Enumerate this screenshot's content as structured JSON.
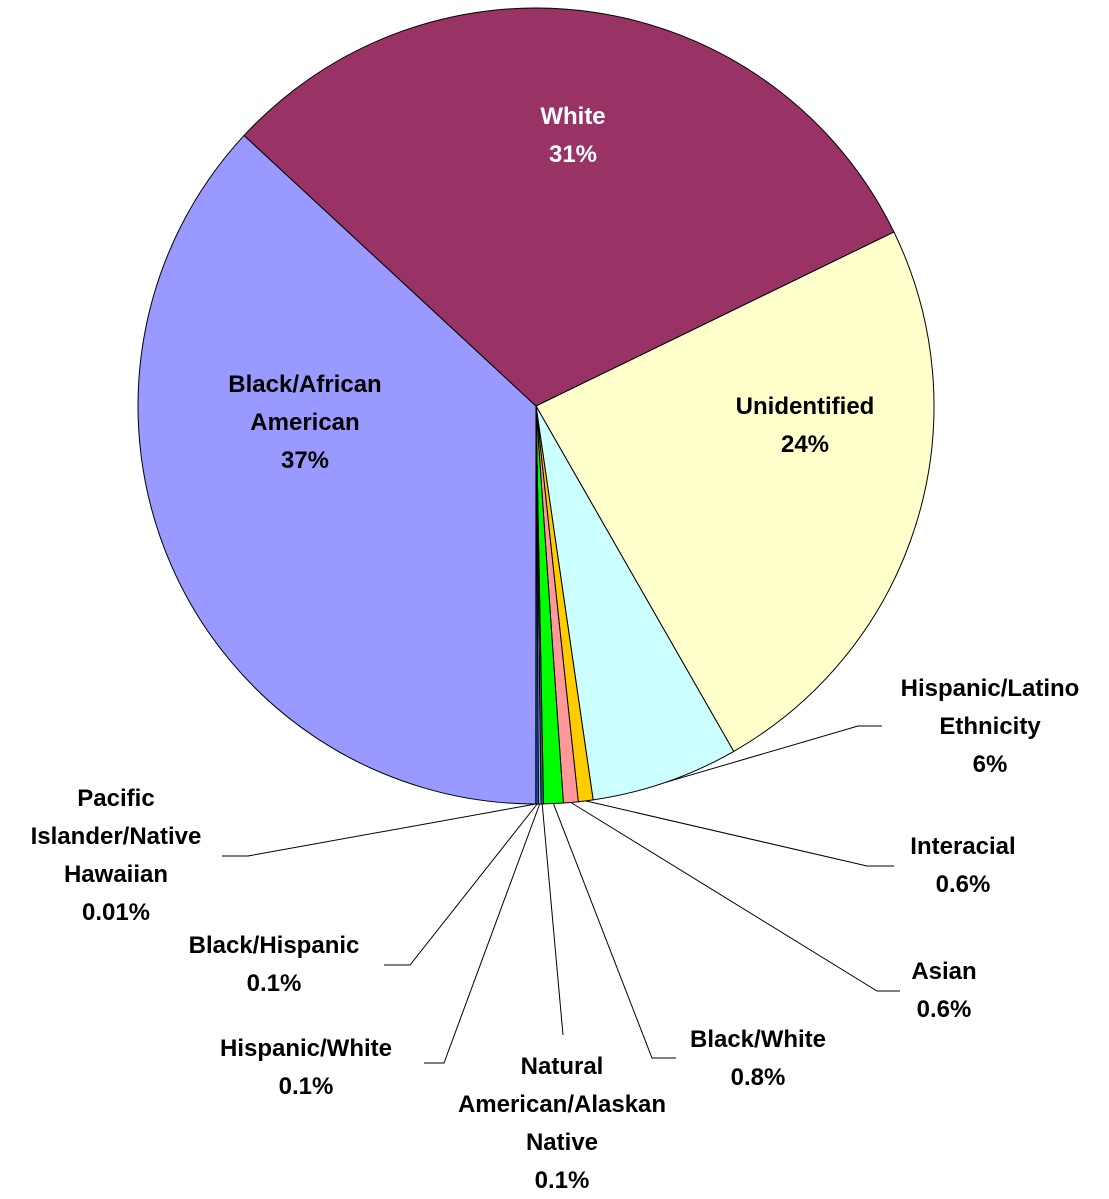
{
  "chart_data": {
    "type": "pie",
    "start_at": "bottom",
    "direction": "clockwise",
    "slices": [
      {
        "name": "Pacific Islander/Native Hawaiian",
        "label_lines": [
          "Pacific",
          "Islander/Native",
          "Hawaiian"
        ],
        "percent_label": "0.01%",
        "value": 0.01,
        "color": "#000080"
      },
      {
        "name": "Black/African American",
        "label_lines": [
          "Black/African",
          "American"
        ],
        "percent_label": "37%",
        "value": 37,
        "color": "#9999FF"
      },
      {
        "name": "White",
        "label_lines": [
          "White"
        ],
        "percent_label": "31%",
        "value": 31,
        "color": "#993366"
      },
      {
        "name": "Unidentified",
        "label_lines": [
          "Unidentified"
        ],
        "percent_label": "24%",
        "value": 24,
        "color": "#FFFFCC"
      },
      {
        "name": "Hispanic/Latino Ethnicity",
        "label_lines": [
          "Hispanic/Latino",
          "Ethnicity"
        ],
        "percent_label": "6%",
        "value": 6,
        "color": "#CCFFFF"
      },
      {
        "name": "Interacial",
        "label_lines": [
          "Interacial"
        ],
        "percent_label": "0.6%",
        "value": 0.6,
        "color": "#FFCC00"
      },
      {
        "name": "Asian",
        "label_lines": [
          "Asian"
        ],
        "percent_label": "0.6%",
        "value": 0.6,
        "color": "#FF9999"
      },
      {
        "name": "Black/White",
        "label_lines": [
          "Black/White"
        ],
        "percent_label": "0.8%",
        "value": 0.8,
        "color": "#00FF00"
      },
      {
        "name": "Natural American/Alaskan Native",
        "label_lines": [
          "Natural",
          "American/Alaskan",
          "Native"
        ],
        "percent_label": "0.1%",
        "value": 0.1,
        "color": "#008080"
      },
      {
        "name": "Hispanic/White",
        "label_lines": [
          "Hispanic/White"
        ],
        "percent_label": "0.1%",
        "value": 0.1,
        "color": "#CC99FF"
      },
      {
        "name": "Black/Hispanic",
        "label_lines": [
          "Black/Hispanic"
        ],
        "percent_label": "0.1%",
        "value": 0.1,
        "color": "#0066CC"
      }
    ]
  }
}
